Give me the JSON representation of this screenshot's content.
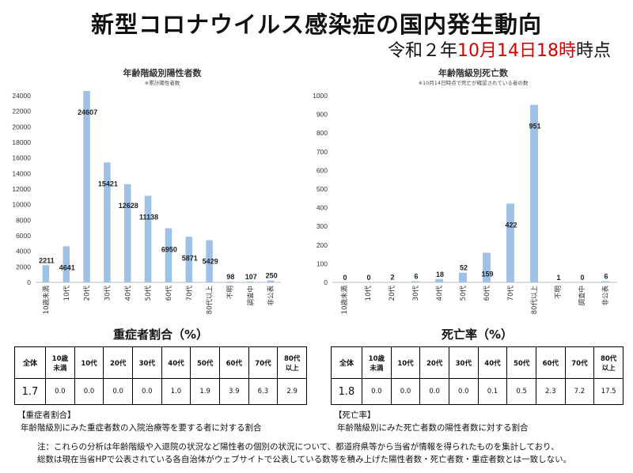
{
  "title": "新型コロナウイルス感染症の国内発生動向",
  "asof": {
    "prefix": "令和２年",
    "date": "10月14日18時",
    "suffix": "時点"
  },
  "chart_data": [
    {
      "type": "bar",
      "title": "年齢階級別陽性者数",
      "note": "※累計陽性者数",
      "categories": [
        "10歳未満",
        "10代",
        "20代",
        "30代",
        "40代",
        "50代",
        "60代",
        "70代",
        "80代以上",
        "不明",
        "調査中",
        "非公表"
      ],
      "values": [
        2211,
        4641,
        24607,
        15421,
        12628,
        11138,
        6950,
        5871,
        5429,
        98,
        107,
        250
      ],
      "ylim": [
        0,
        24000
      ],
      "yticks": [
        0,
        2000,
        4000,
        6000,
        8000,
        10000,
        12000,
        14000,
        16000,
        18000,
        20000,
        22000,
        24000
      ],
      "bar_color": "#9ec2e6",
      "grid": false
    },
    {
      "type": "bar",
      "title": "年齢階級別死亡数",
      "note": "※10月14日時点で死亡が確認されている者の数",
      "categories": [
        "10歳未満",
        "10代",
        "20代",
        "30代",
        "40代",
        "50代",
        "60代",
        "70代",
        "80代以上",
        "不明",
        "調査中",
        "非公表"
      ],
      "values": [
        0,
        0,
        2,
        6,
        18,
        52,
        159,
        422,
        951,
        1,
        0,
        6
      ],
      "ylim": [
        0,
        1000
      ],
      "yticks": [
        0,
        100,
        200,
        300,
        400,
        500,
        600,
        700,
        800,
        900,
        1000
      ],
      "bar_color": "#9ec2e6",
      "grid": false
    }
  ],
  "severe": {
    "title": "重症者割合（%）",
    "total_label": "全体",
    "headers": [
      "10歳\n未満",
      "10代",
      "20代",
      "30代",
      "40代",
      "50代",
      "60代",
      "70代",
      "80代\n以上"
    ],
    "total": "1.7",
    "values": [
      "0.0",
      "0.0",
      "0.0",
      "0.0",
      "1.0",
      "1.9",
      "3.9",
      "6.3",
      "2.9"
    ],
    "note_title": "【重症者割合】",
    "note_body": "年齢階級別にみた重症者数の入院治療等を要する者に対する割合"
  },
  "death": {
    "title": "死亡率（%）",
    "total_label": "全体",
    "headers": [
      "10歳\n未満",
      "10代",
      "20代",
      "30代",
      "40代",
      "50代",
      "60代",
      "70代",
      "80代\n以上"
    ],
    "total": "1.8",
    "values": [
      "0.0",
      "0.0",
      "0.0",
      "0.0",
      "0.1",
      "0.5",
      "2.3",
      "7.2",
      "17.5"
    ],
    "note_title": "【死亡率】",
    "note_body": "年齢階級別にみた死亡者数の陽性者数に対する割合"
  },
  "footnote": {
    "line1": "注：これらの分析は年齢階級や入退院の状況など陽性者の個別の状況について、都道府県等から当省が情報を得られたものを集計しており、",
    "line2": "総数は現在当省HPで公表されている各自治体がウェブサイトで公表している数等を積み上げた陽性者数・死亡者数・重症者数とは一致しない。"
  }
}
